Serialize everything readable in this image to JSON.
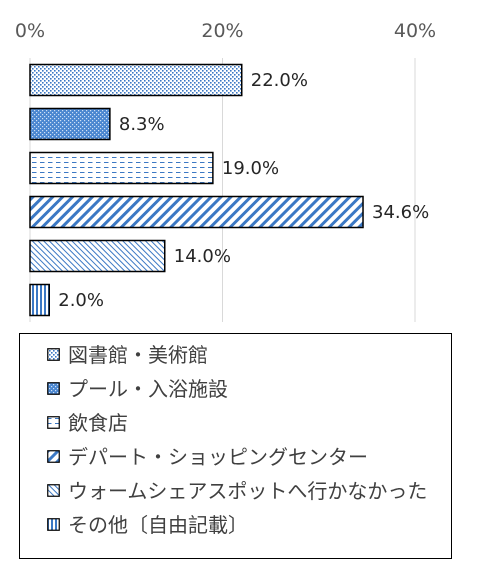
{
  "chart_data": {
    "type": "bar",
    "orientation": "horizontal",
    "categories": [
      "図書館・美術館",
      "プール・入浴施設",
      "飲食店",
      "デパート・ショッピングセンター",
      "ウォームシェアスポットへ行かなかった",
      "その他〔自由記載〕"
    ],
    "values": [
      22.0,
      8.3,
      19.0,
      34.6,
      14.0,
      2.0
    ],
    "value_labels": [
      "22.0%",
      "8.3%",
      "19.0%",
      "34.6%",
      "14.0%",
      "2.0%"
    ],
    "xlim": [
      0,
      40
    ],
    "x_ticks": [
      0,
      20,
      40
    ],
    "x_tick_labels": [
      "0%",
      "20%",
      "40%"
    ],
    "x_axis_position": "top",
    "grid": "vertical",
    "legend_position": "bottom",
    "title": "",
    "xlabel": "",
    "ylabel": ""
  },
  "legend": {
    "items": [
      "図書館・美術館",
      "プール・入浴施設",
      "飲食店",
      "デパート・ショッピングセンター",
      "ウォームシェアスポットへ行かなかった",
      "その他〔自由記載〕"
    ]
  },
  "colors": {
    "bar_fill_base": "#ffffff",
    "pattern_blue": "#3b78c4",
    "solid_blue": "#4a86d0",
    "bar_outline": "#000000",
    "gridline": "#d9d9d9"
  }
}
